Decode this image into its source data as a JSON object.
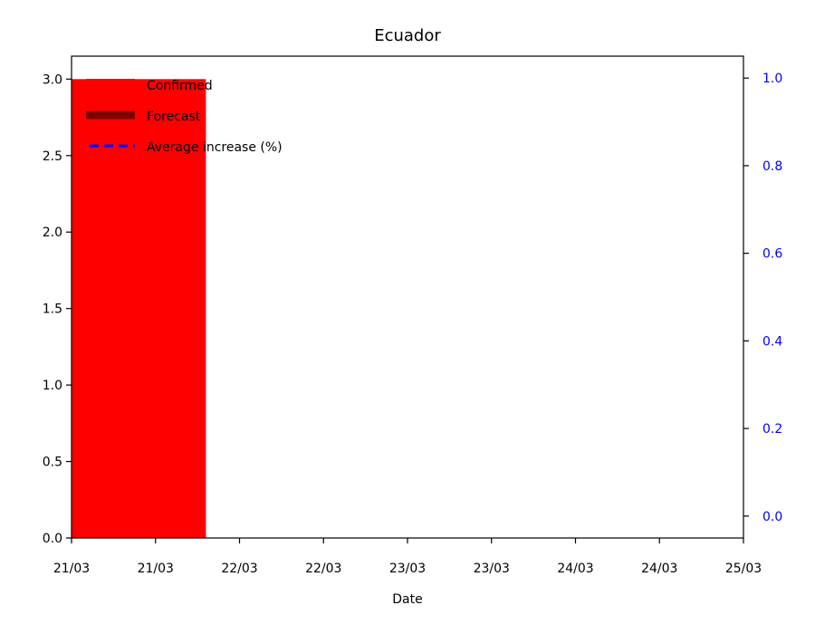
{
  "chart_data": {
    "type": "bar",
    "title": "Ecuador",
    "xlabel": "Date",
    "ylabel": "",
    "ylabel_right": "",
    "x_ticks": [
      "21/03",
      "21/03",
      "22/03",
      "22/03",
      "23/03",
      "23/03",
      "24/03",
      "24/03",
      "25/03"
    ],
    "x_range": [
      0,
      4
    ],
    "y_left": {
      "range": [
        0,
        3.15
      ],
      "ticks": [
        "0.0",
        "0.5",
        "1.0",
        "1.5",
        "2.0",
        "2.5",
        "3.0"
      ]
    },
    "y_right": {
      "range": [
        -0.05,
        1.05
      ],
      "ticks": [
        "0.0",
        "0.2",
        "0.4",
        "0.6",
        "0.8",
        "1.0"
      ]
    },
    "series": [
      {
        "name": "Confirmed",
        "type": "bar",
        "color": "#ff0000",
        "points": [
          {
            "x": 0,
            "width": 0.8,
            "y": 3
          }
        ]
      },
      {
        "name": "Forecast",
        "type": "bar",
        "color": "#800000",
        "points": []
      },
      {
        "name": "Average increase (%)",
        "type": "line",
        "style": "dashed",
        "color": "#0000ff",
        "axis": "right",
        "points": []
      }
    ],
    "legend": {
      "placement": "upper-left",
      "entries": [
        {
          "label": "Confirmed",
          "marker": "patch",
          "color": "#ff0000"
        },
        {
          "label": "Forecast",
          "marker": "thick-line",
          "color": "#800000"
        },
        {
          "label": "Average increase (%)",
          "marker": "dashed-line",
          "color": "#0000ff"
        }
      ]
    },
    "grid": false,
    "right_axis_color": "#0000ff"
  }
}
